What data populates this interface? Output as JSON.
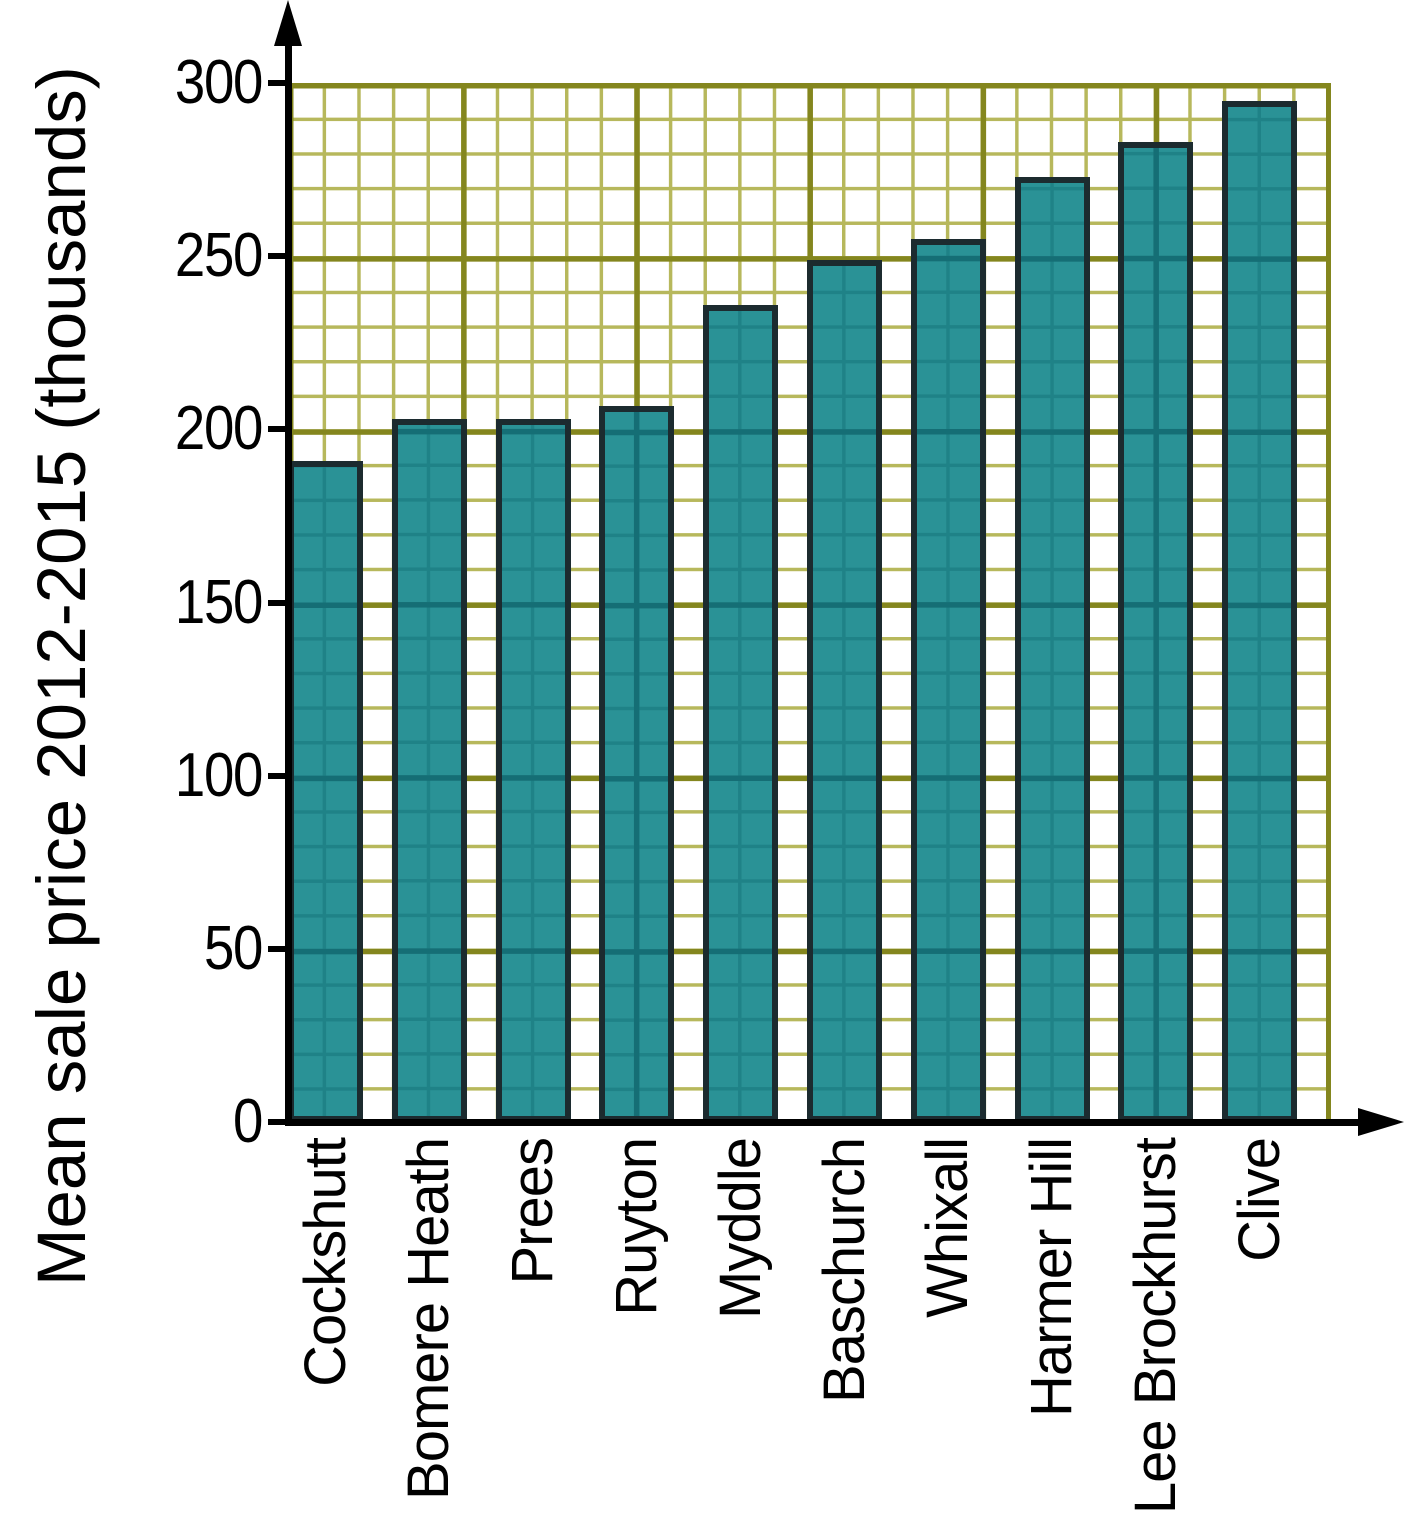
{
  "chart_data": {
    "type": "bar",
    "title": "",
    "ylabel": "Mean sale price 2012-2015 (thousands)",
    "xlabel": "",
    "categories": [
      "Cockshutt",
      "Bomere Heath",
      "Prees",
      "Ruyton",
      "Myddle",
      "Baschurch",
      "Whixall",
      "Harmer Hill",
      "Lee Brockhurst",
      "Clive"
    ],
    "values": [
      190,
      202,
      202,
      206,
      235,
      248,
      254,
      272,
      282,
      294
    ],
    "ylim": [
      0,
      300
    ],
    "yticks": [
      0,
      50,
      100,
      150,
      200,
      250,
      300
    ],
    "grid": {
      "style": "graph-paper",
      "minor_step": 10,
      "major_step": 50,
      "on": true
    },
    "legend": "none",
    "x_tick_rotation_degrees": 90,
    "colors": {
      "bar_fill": "#2a9296",
      "bar_border": "#1c2b2f",
      "bar_grid_minor": "#1f8287",
      "bar_grid_major": "#156e75",
      "grid_minor": "#b7b85c",
      "grid_major": "#84861e",
      "axis": "#000000",
      "text": "#000000",
      "background": "#ffffff"
    }
  }
}
